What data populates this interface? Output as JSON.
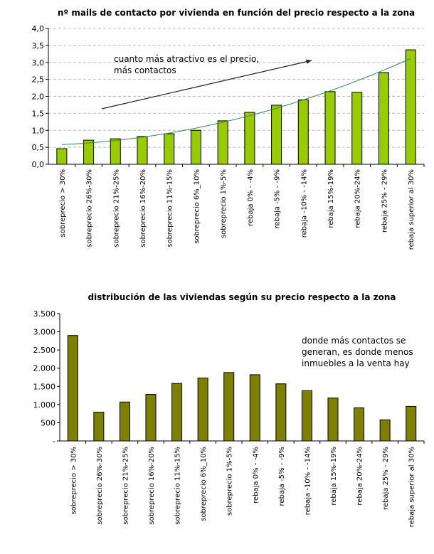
{
  "chart_data": [
    {
      "type": "bar",
      "title": "nº mails de contacto por vivienda en función del precio respecto a la zona",
      "categories": [
        "sobreprecio > 30%",
        "sobreprecio 26%-30%",
        "sobreprecio 21%-25%",
        "sobreprecio 16%-20%",
        "sobreprecio 11%-15%",
        "sobreprecio 6%_10%",
        "sobreprecio 1%-5%",
        "rebaja 0% - -4%",
        "rebaja  -5% - -9%",
        "rebaja  -10% - -14%",
        "rebaja 15%-19%",
        "rebaja 20%-24%",
        "rebaja  25% - 29%",
        "rebaja  superior al 30%"
      ],
      "values": [
        0.46,
        0.71,
        0.75,
        0.82,
        0.9,
        1.0,
        1.28,
        1.53,
        1.74,
        1.9,
        2.14,
        2.12,
        2.7,
        3.37
      ],
      "trendline": "polynomial",
      "ylim": [
        0,
        4.0
      ],
      "yticks": [
        "0,0",
        "0,5",
        "1,0",
        "1,5",
        "2,0",
        "2,5",
        "3,0",
        "3,5",
        "4,0"
      ],
      "grid": true,
      "annotation": [
        "cuanto más atractivo es el precio,",
        "más contactos"
      ],
      "colors": {
        "bar": "#99cc00",
        "trend": "#2e8b57"
      }
    },
    {
      "type": "bar",
      "title": "distribución de las viviendas según su precio respecto a la zona",
      "categories": [
        "sobreprecio > 30%",
        "sobreprecio 26%-30%",
        "sobreprecio 21%-25%",
        "sobreprecio 16%-20%",
        "sobreprecio 11%-15%",
        "sobreprecio 6%_10%",
        "sobreprecio 1%-5%",
        "rebaja 0% - -4%",
        "rebaja  -5% - -9%",
        "rebaja  -10% - -14%",
        "rebaja 15%-19%",
        "rebaja 20%-24%",
        "rebaja  25% - 29%",
        "rebaja  superior al 30%"
      ],
      "values": [
        2900,
        790,
        1070,
        1280,
        1580,
        1730,
        1880,
        1820,
        1570,
        1380,
        1180,
        910,
        580,
        950
      ],
      "ylim": [
        0,
        3500
      ],
      "yticks": [
        "-",
        "500",
        "1.000",
        "1.500",
        "2.000",
        "2.500",
        "3.000",
        "3.500"
      ],
      "grid": false,
      "annotation": [
        "donde más contactos se",
        "generan, es donde menos",
        "inmuebles a la venta hay"
      ],
      "colors": {
        "bar": "#808000"
      }
    }
  ]
}
